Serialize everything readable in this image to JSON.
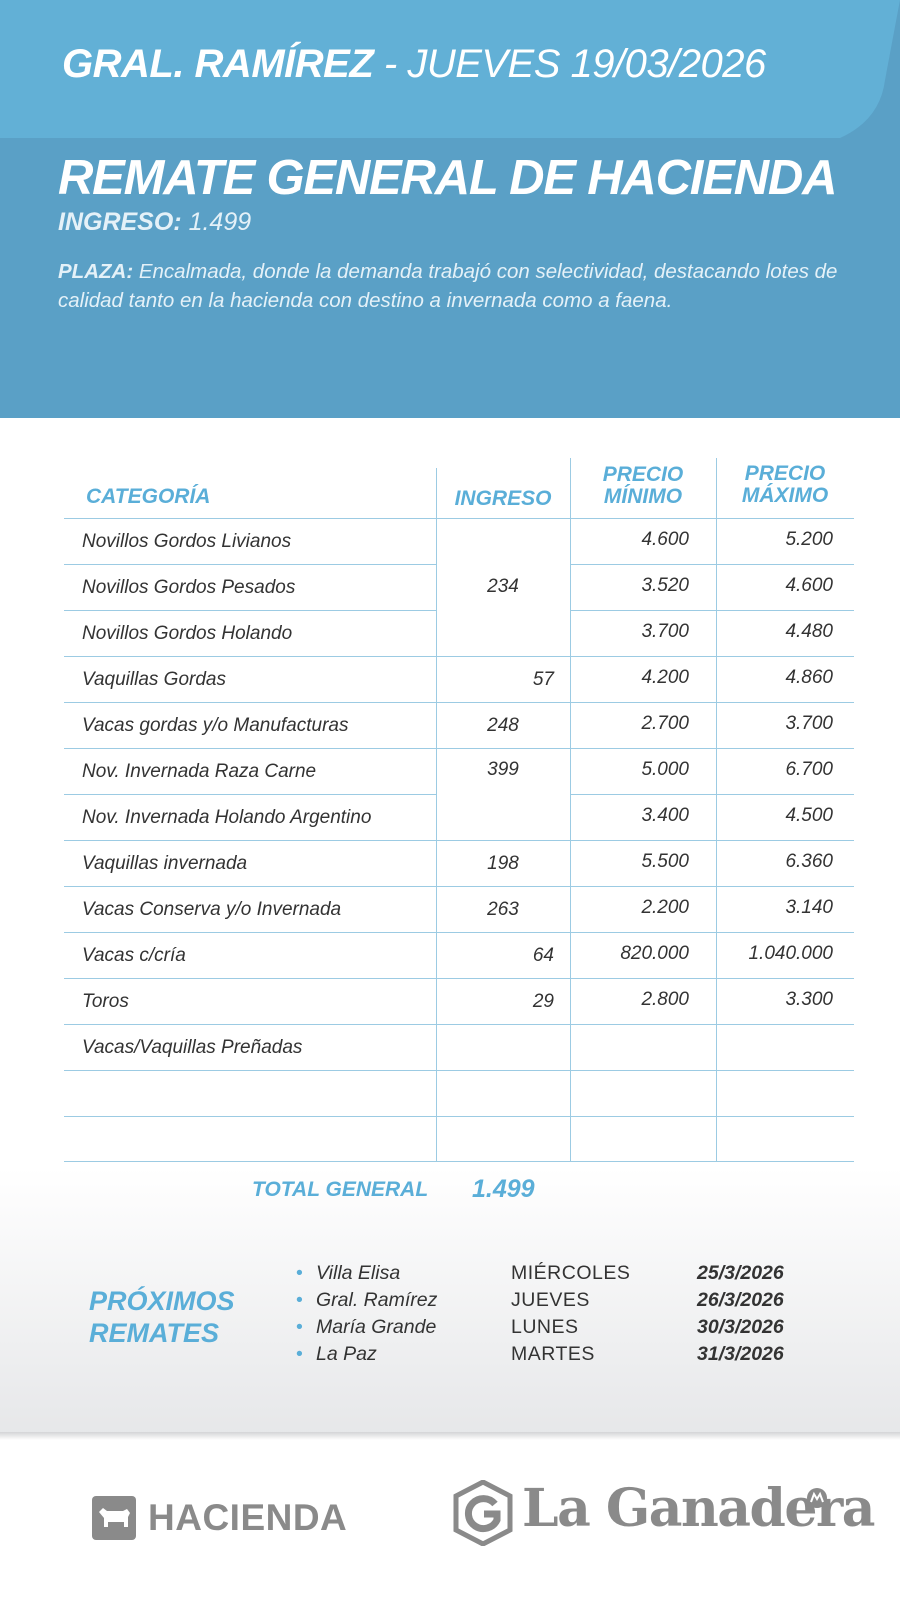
{
  "header": {
    "location": "GRAL. RAMÍREZ",
    "sep_date": " - JUEVES 19/03/2026"
  },
  "hero": {
    "title": "REMATE GENERAL DE HACIENDA",
    "ingreso_label": "INGRESO:",
    "ingreso_value": " 1.499",
    "plaza_label": "PLAZA:",
    "plaza_text": " Encalmada, donde la demanda trabajó con selectividad, destacando lotes de calidad tanto en la hacienda con destino a invernada como a faena."
  },
  "table": {
    "headers": {
      "categoria": "CATEGORÍA",
      "ingreso": "INGRESO",
      "precio_min_1": "PRECIO",
      "precio_min_2": "MÍNIMO",
      "precio_max_1": "PRECIO",
      "precio_max_2": "MÁXIMO"
    },
    "rows": [
      {
        "categoria": "Novillos Gordos Livianos",
        "min": "4.600",
        "max": "5.200"
      },
      {
        "categoria": "Novillos Gordos Pesados",
        "min": "3.520",
        "max": "4.600"
      },
      {
        "categoria": "Novillos Gordos Holando",
        "min": "3.700",
        "max": "4.480"
      },
      {
        "categoria": "Vaquillas Gordas",
        "ingreso": "57",
        "min": "4.200",
        "max": "4.860"
      },
      {
        "categoria": "Vacas gordas y/o Manufacturas",
        "ingreso": "248",
        "min": "2.700",
        "max": "3.700"
      },
      {
        "categoria": "Nov. Invernada Raza Carne",
        "min": "5.000",
        "max": "6.700"
      },
      {
        "categoria": "Nov. Invernada Holando Argentino",
        "min": "3.400",
        "max": "4.500"
      },
      {
        "categoria": "Vaquillas invernada",
        "ingreso": "198",
        "min": "5.500",
        "max": "6.360"
      },
      {
        "categoria": "Vacas Conserva y/o Invernada",
        "ingreso": "263",
        "min": "2.200",
        "max": "3.140"
      },
      {
        "categoria": "Vacas c/cría",
        "ingreso": "64",
        "min": "820.000",
        "max": "1.040.000"
      },
      {
        "categoria": "Toros",
        "ingreso": "29",
        "min": "2.800",
        "max": "3.300"
      },
      {
        "categoria": "Vacas/Vaquillas Preñadas"
      }
    ],
    "group_ingreso": {
      "novillos_gordos": "234",
      "novillos_invernada": "399"
    }
  },
  "total": {
    "label": "TOTAL GENERAL",
    "value": "1.499"
  },
  "proximos": {
    "title_1": "PRÓXIMOS",
    "title_2": "REMATES",
    "items": [
      {
        "place": "Villa Elisa",
        "day": "MIÉRCOLES",
        "date": "25/3/2026"
      },
      {
        "place": "Gral. Ramírez",
        "day": "JUEVES",
        "date": "26/3/2026"
      },
      {
        "place": "María Grande",
        "day": "LUNES",
        "date": "30/3/2026"
      },
      {
        "place": "La Paz",
        "day": "MARTES",
        "date": "31/3/2026"
      }
    ]
  },
  "footer": {
    "hacienda": "HACIENDA",
    "ganadera": "La Ganadera"
  },
  "colors": {
    "accent": "#5aaed8",
    "hero_bg": "#5aa0c6",
    "top_band": "#62b0d6"
  }
}
